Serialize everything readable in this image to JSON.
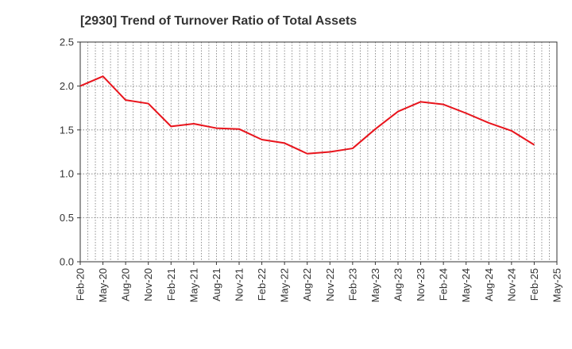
{
  "chart_data": {
    "type": "line",
    "title": "[2930]  Trend of Turnover Ratio of Total Assets",
    "xlabel": "",
    "ylabel": "",
    "ylim": [
      0,
      2.5
    ],
    "yticks": [
      "0.0",
      "0.5",
      "1.0",
      "1.5",
      "2.0",
      "2.5"
    ],
    "xticks": [
      "Feb-20",
      "May-20",
      "Aug-20",
      "Nov-20",
      "Feb-21",
      "May-21",
      "Aug-21",
      "Nov-21",
      "Feb-22",
      "May-22",
      "Aug-22",
      "Nov-22",
      "Feb-23",
      "May-23",
      "Aug-23",
      "Nov-23",
      "Feb-24",
      "May-24",
      "Aug-24",
      "Nov-24",
      "Feb-25",
      "May-25"
    ],
    "grid": true,
    "line_color": "#e8141c",
    "series": [
      {
        "values": [
          2.0,
          2.11,
          1.84,
          1.8,
          1.54,
          1.57,
          1.52,
          1.51,
          1.39,
          1.35,
          1.23,
          1.25,
          1.29,
          1.51,
          1.71,
          1.82,
          1.79,
          1.69,
          1.58,
          1.49,
          1.33
        ]
      }
    ]
  }
}
